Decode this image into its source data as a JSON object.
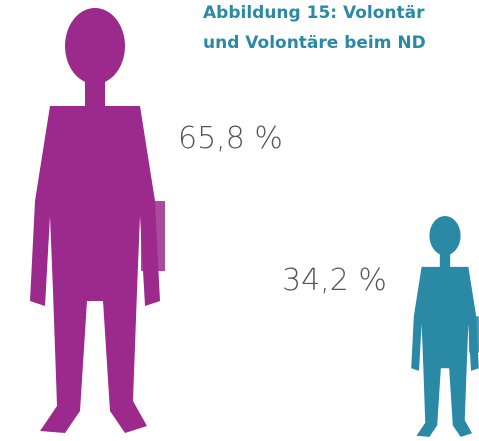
{
  "chart_data": {
    "type": "pictogram",
    "title": [
      "Abbildung 15: Volontär",
      "und Volontäre beim ND"
    ],
    "values": [
      65.8,
      34.2
    ],
    "value_labels": [
      "65,8 %",
      "34,2 %"
    ],
    "colors": [
      "#9b2a8c",
      "#2a8aa6"
    ]
  }
}
